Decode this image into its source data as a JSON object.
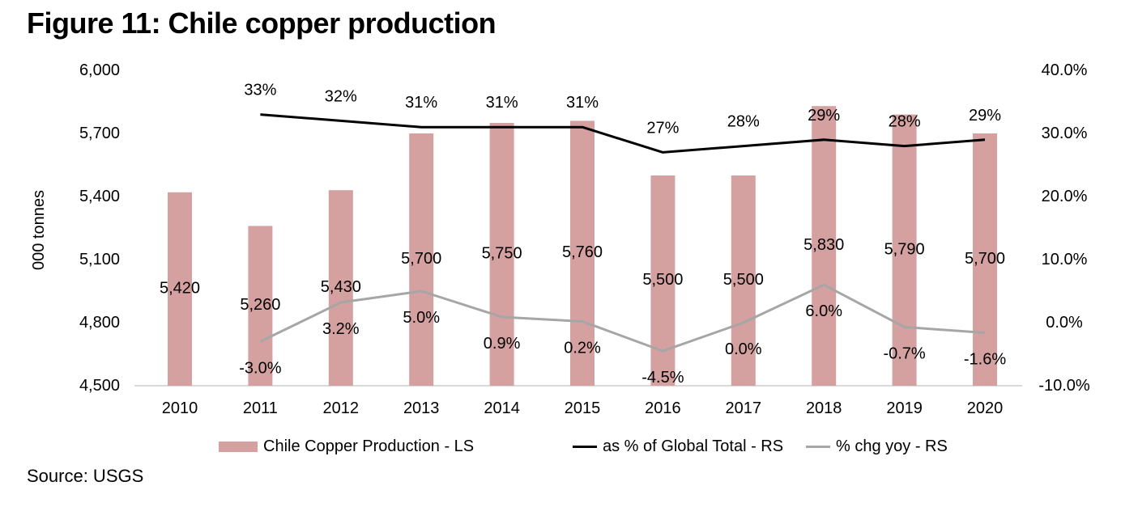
{
  "figure": {
    "title": "Figure 11: Chile copper production",
    "source": "Source: USGS"
  },
  "colors": {
    "background": "#ffffff",
    "text": "#000000",
    "bar": "#d5a0a0",
    "black_line": "#000000",
    "gray_line": "#a6a6a6",
    "baseline": "#d9d9d9"
  },
  "chart_data": {
    "type": "bar",
    "subtype": "combo-bar-line-dual-axis",
    "title": "Figure 11: Chile copper production",
    "categories": [
      "2010",
      "2011",
      "2012",
      "2013",
      "2014",
      "2015",
      "2016",
      "2017",
      "2018",
      "2019",
      "2020"
    ],
    "left_axis": {
      "label": "000 tonnes",
      "min": 4500,
      "max": 6000,
      "ticks": [
        {
          "value": 6000,
          "label": "6,000"
        },
        {
          "value": 5700,
          "label": "5,700"
        },
        {
          "value": 5400,
          "label": "5,400"
        },
        {
          "value": 5100,
          "label": "5,100"
        },
        {
          "value": 4800,
          "label": "4,800"
        },
        {
          "value": 4500,
          "label": "4,500"
        }
      ]
    },
    "right_axis": {
      "label": "",
      "min": -10,
      "max": 40,
      "ticks": [
        {
          "value": 40,
          "label": "40.0%"
        },
        {
          "value": 30,
          "label": "30.0%"
        },
        {
          "value": 20,
          "label": "20.0%"
        },
        {
          "value": 10,
          "label": "10.0%"
        },
        {
          "value": 0,
          "label": "0.0%"
        },
        {
          "value": -10,
          "label": "-10.0%"
        }
      ]
    },
    "series": [
      {
        "name": "Chile Copper Production - LS",
        "type": "bar",
        "axis": "left",
        "color": "#d5a0a0",
        "values": [
          5420,
          5260,
          5430,
          5700,
          5750,
          5760,
          5500,
          5500,
          5830,
          5790,
          5700
        ],
        "value_labels": [
          "5,420",
          "5,260",
          "5,430",
          "5,700",
          "5,750",
          "5,760",
          "5,500",
          "5,500",
          "5,830",
          "5,790",
          "5,700"
        ]
      },
      {
        "name": "as % of Global Total - RS",
        "type": "line",
        "axis": "right",
        "color": "#000000",
        "values": [
          null,
          33,
          32,
          31,
          31,
          31,
          27,
          28,
          29,
          28,
          29
        ],
        "value_labels": [
          null,
          "33%",
          "32%",
          "31%",
          "31%",
          "31%",
          "27%",
          "28%",
          "29%",
          "28%",
          "29%"
        ]
      },
      {
        "name": "% chg yoy - RS",
        "type": "line",
        "axis": "right",
        "color": "#a6a6a6",
        "values": [
          null,
          -3.0,
          3.2,
          5.0,
          0.9,
          0.2,
          -4.5,
          0.0,
          6.0,
          -0.7,
          -1.6
        ],
        "value_labels": [
          null,
          "-3.0%",
          "3.2%",
          "5.0%",
          "0.9%",
          "0.2%",
          "-4.5%",
          "0.0%",
          "6.0%",
          "-0.7%",
          "-1.6%"
        ]
      }
    ],
    "legend": [
      {
        "label": "Chile Copper Production - LS",
        "swatch": "bar",
        "color": "#d5a0a0"
      },
      {
        "label": "as % of Global Total - RS",
        "swatch": "line",
        "color": "#000000"
      },
      {
        "label": "% chg yoy - RS",
        "swatch": "line",
        "color": "#a6a6a6"
      }
    ],
    "grid": false,
    "legend_position": "bottom"
  }
}
